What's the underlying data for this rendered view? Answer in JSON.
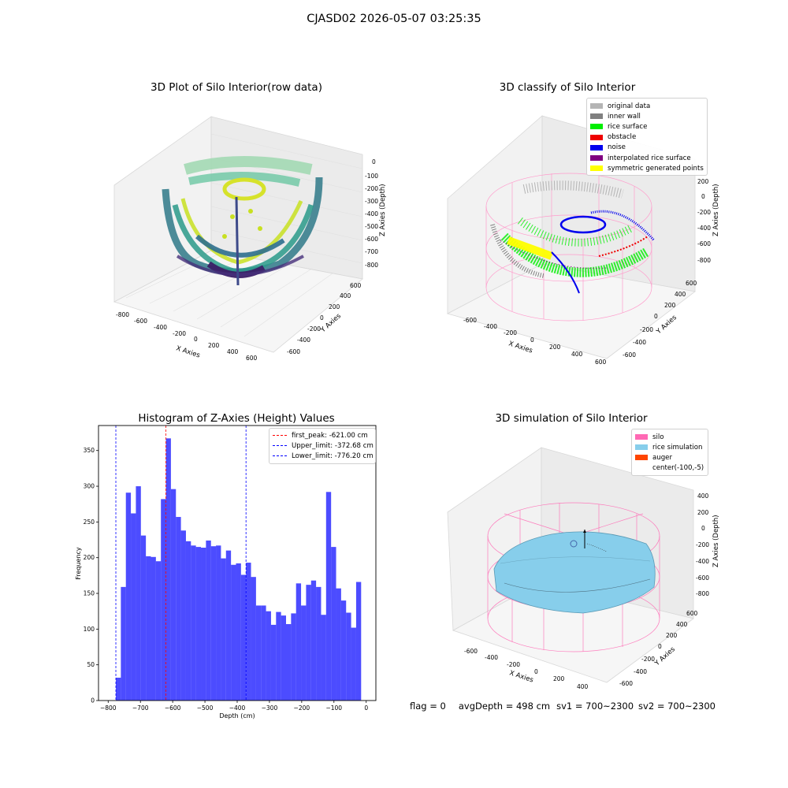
{
  "suptitle": "CJASD02 2026-05-07 03:25:35",
  "panels": {
    "p1": {
      "title": "3D Plot of Silo Interior(row data)",
      "xlabel": "X Axies",
      "ylabel": "Y Axies",
      "zlabel": "Z Axies (Depth)",
      "xticks": [
        "-800",
        "-600",
        "-400",
        "-200",
        "0",
        "200",
        "400",
        "600"
      ],
      "yticks": [
        "-600",
        "-400",
        "-200",
        "0",
        "200",
        "400",
        "600"
      ],
      "zticks": [
        "0",
        "-100",
        "-200",
        "-300",
        "-400",
        "-500",
        "-600",
        "-700",
        "-800"
      ],
      "colormap": "viridis"
    },
    "p2": {
      "title": "3D classify of Silo Interior",
      "xlabel": "X Axies",
      "ylabel": "Y Axies",
      "zlabel": "Z Axies (Depth)",
      "xticks": [
        "-600",
        "-400",
        "-200",
        "0",
        "200",
        "400",
        "600"
      ],
      "yticks": [
        "-600",
        "-400",
        "-200",
        "0",
        "200",
        "400",
        "600"
      ],
      "zticks": [
        "200",
        "0",
        "-200",
        "-400",
        "-600",
        "-800"
      ],
      "legend": [
        {
          "label": "original data",
          "color": "#b4b4b4"
        },
        {
          "label": "inner wall",
          "color": "#808080"
        },
        {
          "label": "rice surface",
          "color": "#00ee00"
        },
        {
          "label": "obstacle",
          "color": "#ee0000"
        },
        {
          "label": "noise",
          "color": "#0000ee"
        },
        {
          "label": "interpolated rice surface",
          "color": "#800080"
        },
        {
          "label": "symmetric generated points",
          "color": "#ffff00"
        }
      ]
    },
    "p3": {
      "title": "Histogram of Z-Axies (Height) Values",
      "legend": [
        {
          "label": "first_peak: -621.00 cm",
          "color": "#ff0000"
        },
        {
          "label": "Upper_limit: -372.68 cm",
          "color": "#0000ff"
        },
        {
          "label": "Lower_limit: -776.20 cm",
          "color": "#0000ff"
        }
      ]
    },
    "p4": {
      "title": "3D simulation of Silo Interior",
      "xlabel": "X Axies",
      "ylabel": "Y Axies",
      "zlabel": "Z Axies (Depth)",
      "xticks": [
        "-600",
        "-400",
        "-200",
        "0",
        "200",
        "400"
      ],
      "yticks": [
        "-600",
        "-400",
        "-200",
        "0",
        "200",
        "400",
        "600"
      ],
      "zticks": [
        "400",
        "200",
        "0",
        "-200",
        "-400",
        "-600",
        "-800"
      ],
      "legend": [
        {
          "label": "silo",
          "color": "#ff69b4"
        },
        {
          "label": "rice simulation",
          "color": "#87ceeb"
        },
        {
          "label": "auger",
          "color": "#ff4500"
        },
        {
          "label": "center(-100,-5)",
          "color": null
        }
      ]
    }
  },
  "status": {
    "flag": "flag = 0",
    "avg_depth": "avgDepth = 498 cm",
    "sv1": "sv1 = 700~2300",
    "sv2": "sv2 = 700~2300"
  },
  "chart_data": [
    {
      "type": "histogram",
      "title": "Histogram of Z-Axies (Height) Values",
      "xlabel": "Depth (cm)",
      "ylabel": "Frequency",
      "xlim": [
        -830,
        30
      ],
      "ylim": [
        0,
        385
      ],
      "xticks": [
        -800,
        -700,
        -600,
        -500,
        -400,
        -300,
        -200,
        -100,
        0
      ],
      "yticks": [
        0,
        50,
        100,
        150,
        200,
        250,
        300,
        350
      ],
      "color": "#0000ff",
      "bin_start": -776.2,
      "bin_width": 15.52,
      "values": [
        32,
        159,
        291,
        262,
        300,
        231,
        202,
        201,
        195,
        282,
        367,
        296,
        257,
        238,
        223,
        217,
        215,
        214,
        224,
        216,
        217,
        199,
        210,
        190,
        192,
        176,
        193,
        173,
        133,
        133,
        125,
        106,
        124,
        119,
        107,
        122,
        164,
        133,
        162,
        168,
        159,
        120,
        292,
        215,
        157,
        140,
        123,
        102,
        166
      ],
      "vlines": [
        {
          "x": -621.0,
          "label": "first_peak: -621.00 cm",
          "color": "#ff0000"
        },
        {
          "x": -372.68,
          "label": "Upper_limit: -372.68 cm",
          "color": "#0000ff"
        },
        {
          "x": -776.2,
          "label": "Lower_limit: -776.20 cm",
          "color": "#0000ff"
        }
      ],
      "legend_loc": "upper right"
    }
  ]
}
